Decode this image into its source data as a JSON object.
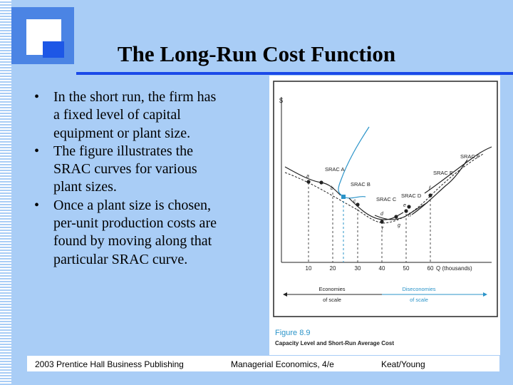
{
  "slide": {
    "title": "The Long-Run Cost Function",
    "bullets": [
      {
        "line1": "In the short run, the firm has",
        "line2": "a fixed level of capital",
        "line3": "equipment or plant size."
      },
      {
        "line1": "The figure illustrates the",
        "line2": "SRAC curves for various",
        "line3": "plant sizes."
      },
      {
        "line1": "Once a plant size is chosen,",
        "line2": "per-unit production costs are",
        "line3": "found by moving along that",
        "line4": "particular SRAC curve."
      }
    ],
    "bullet_glyph": "•"
  },
  "figure": {
    "y_axis_label": "$",
    "x_axis_label": "Q (thousands)",
    "x_ticks": [
      "10",
      "20",
      "30",
      "40",
      "50",
      "60"
    ],
    "curve_labels": {
      "srac_a": "SRAC A",
      "srac_b": "SRAC B",
      "srac_c": "SRAC C",
      "srac_d": "SRAC D",
      "srac_e": "SRAC E",
      "srac_f": "SRAC F"
    },
    "point_labels": {
      "a": "a",
      "b": "b",
      "c": "c",
      "d": "d",
      "e": "e",
      "f": "f",
      "g": "g",
      "h": "h",
      "r": "r"
    },
    "economies_line1": "Economies",
    "economies_line2": "of scale",
    "diseconomies_line1": "Diseconomies",
    "diseconomies_line2": "of scale",
    "caption_number": "Figure 8.9",
    "caption_text": "Capacity Level and Short-Run Average Cost",
    "colors": {
      "highlight": "#2b94c9",
      "ink": "#222222"
    }
  },
  "footer": {
    "left": "2003 Prentice Hall Business Publishing",
    "middle": "Managerial Economics, 4/e",
    "right": "Keat/Young"
  }
}
